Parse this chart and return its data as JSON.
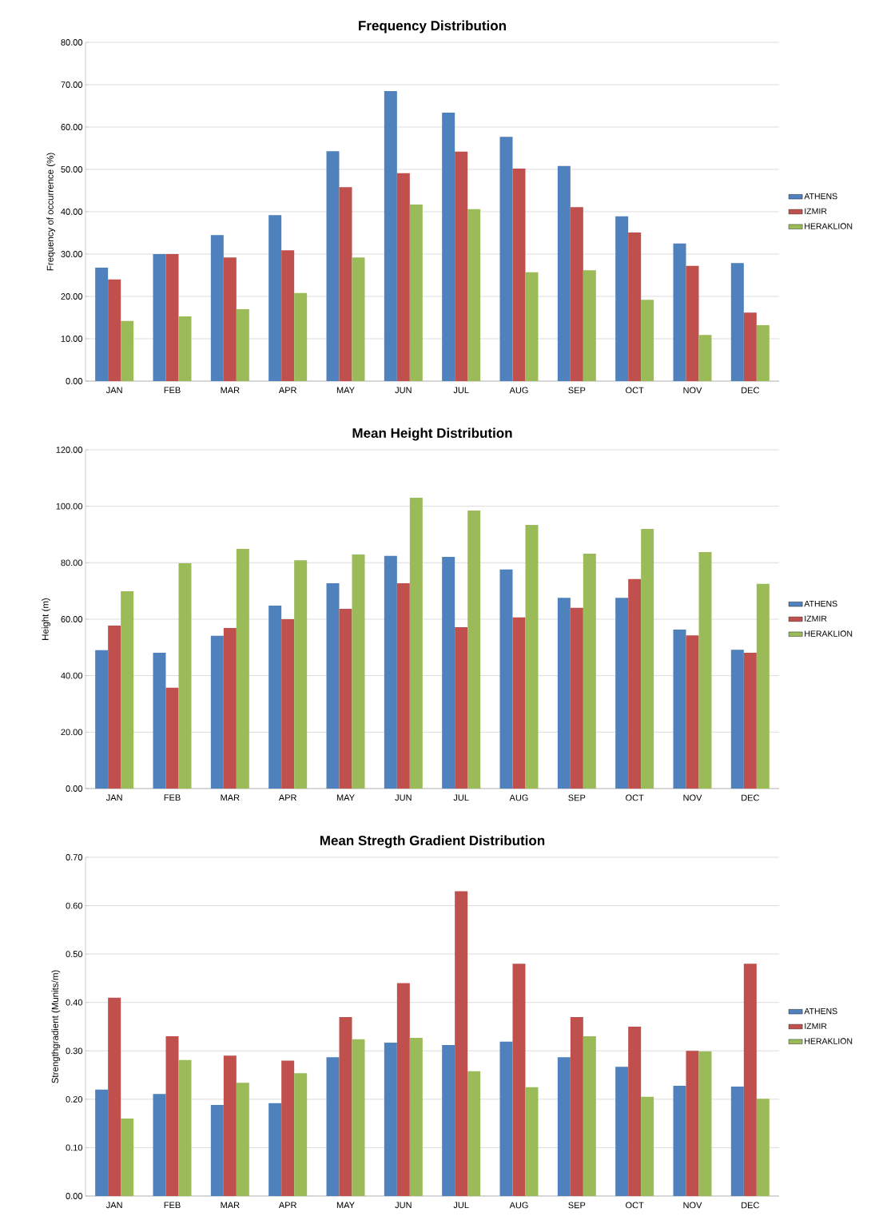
{
  "chart_data": [
    {
      "type": "bar",
      "title": "Frequency Distribution",
      "ylabel": "Frequency of occurrence (%)",
      "categories": [
        "JAN",
        "FEB",
        "MAR",
        "APR",
        "MAY",
        "JUN",
        "JUL",
        "AUG",
        "SEP",
        "OCT",
        "NOV",
        "DEC"
      ],
      "series": [
        {
          "name": "ATHENS",
          "color": "#4f81bd",
          "values": [
            26.8,
            30.0,
            34.5,
            39.2,
            54.3,
            68.5,
            63.4,
            57.7,
            50.8,
            38.9,
            32.5,
            27.9
          ]
        },
        {
          "name": "IZMIR",
          "color": "#c0504d",
          "values": [
            24.0,
            30.0,
            29.2,
            30.9,
            45.8,
            49.1,
            54.2,
            50.2,
            41.1,
            35.1,
            27.2,
            16.2
          ]
        },
        {
          "name": "HERAKLION",
          "color": "#9bbb59",
          "values": [
            14.2,
            15.3,
            17.0,
            20.8,
            29.2,
            41.7,
            40.6,
            25.7,
            26.2,
            19.2,
            10.9,
            13.2
          ]
        }
      ],
      "ylim": [
        0,
        80
      ],
      "yticks": [
        {
          "value": 0,
          "label": "0.00"
        },
        {
          "value": 10,
          "label": "10.00"
        },
        {
          "value": 20,
          "label": "20.00"
        },
        {
          "value": 30,
          "label": "30.00"
        },
        {
          "value": 40,
          "label": "40.00"
        },
        {
          "value": 50,
          "label": "50.00"
        },
        {
          "value": 60,
          "label": "60.00"
        },
        {
          "value": 70,
          "label": "70.00"
        },
        {
          "value": 80,
          "label": "80.00"
        }
      ],
      "grid": "y",
      "legend": "right"
    },
    {
      "type": "bar",
      "title": "Mean Height Distribution",
      "ylabel": "Height (m)",
      "categories": [
        "JAN",
        "FEB",
        "MAR",
        "APR",
        "MAY",
        "JUN",
        "JUL",
        "AUG",
        "SEP",
        "OCT",
        "NOV",
        "DEC"
      ],
      "series": [
        {
          "name": "ATHENS",
          "color": "#4f81bd",
          "values": [
            49.0,
            48.1,
            54.1,
            64.8,
            72.7,
            82.4,
            82.1,
            77.6,
            67.6,
            67.6,
            56.3,
            49.2
          ]
        },
        {
          "name": "IZMIR",
          "color": "#c0504d",
          "values": [
            57.7,
            35.7,
            56.9,
            60.0,
            63.7,
            72.7,
            57.2,
            60.6,
            64.0,
            74.2,
            54.3,
            48.1
          ]
        },
        {
          "name": "HERAKLION",
          "color": "#9bbb59",
          "values": [
            69.9,
            79.8,
            84.9,
            80.9,
            82.9,
            103.0,
            98.5,
            93.4,
            83.2,
            92.0,
            83.8,
            72.5
          ]
        }
      ],
      "ylim": [
        0,
        120
      ],
      "yticks": [
        {
          "value": 0,
          "label": "0.00"
        },
        {
          "value": 20,
          "label": "20.00"
        },
        {
          "value": 40,
          "label": "40.00"
        },
        {
          "value": 60,
          "label": "60.00"
        },
        {
          "value": 80,
          "label": "80.00"
        },
        {
          "value": 100,
          "label": "100.00"
        },
        {
          "value": 120,
          "label": "120.00"
        }
      ],
      "grid": "y",
      "legend": "right"
    },
    {
      "type": "bar",
      "title": "Mean Stregth Gradient  Distribution",
      "ylabel": "Strengthgradient (Munits/m)",
      "categories": [
        "JAN",
        "FEB",
        "MAR",
        "APR",
        "MAY",
        "JUN",
        "JUL",
        "AUG",
        "SEP",
        "OCT",
        "NOV",
        "DEC"
      ],
      "series": [
        {
          "name": "ATHENS",
          "color": "#4f81bd",
          "values": [
            0.22,
            0.211,
            0.188,
            0.192,
            0.287,
            0.317,
            0.312,
            0.319,
            0.287,
            0.267,
            0.228,
            0.226
          ]
        },
        {
          "name": "IZMIR",
          "color": "#c0504d",
          "values": [
            0.41,
            0.33,
            0.29,
            0.28,
            0.37,
            0.44,
            0.63,
            0.48,
            0.37,
            0.35,
            0.3,
            0.48
          ]
        },
        {
          "name": "HERAKLION",
          "color": "#9bbb59",
          "values": [
            0.16,
            0.281,
            0.234,
            0.254,
            0.324,
            0.327,
            0.258,
            0.225,
            0.33,
            0.205,
            0.299,
            0.201
          ]
        }
      ],
      "ylim": [
        0,
        0.7
      ],
      "yticks": [
        {
          "value": 0,
          "label": "0.00"
        },
        {
          "value": 0.1,
          "label": "0.10"
        },
        {
          "value": 0.2,
          "label": "0.20"
        },
        {
          "value": 0.3,
          "label": "0.30"
        },
        {
          "value": 0.4,
          "label": "0.40"
        },
        {
          "value": 0.5,
          "label": "0.50"
        },
        {
          "value": 0.6,
          "label": "0.60"
        },
        {
          "value": 0.7,
          "label": "0.70"
        }
      ],
      "grid": "y",
      "legend": "right"
    }
  ]
}
